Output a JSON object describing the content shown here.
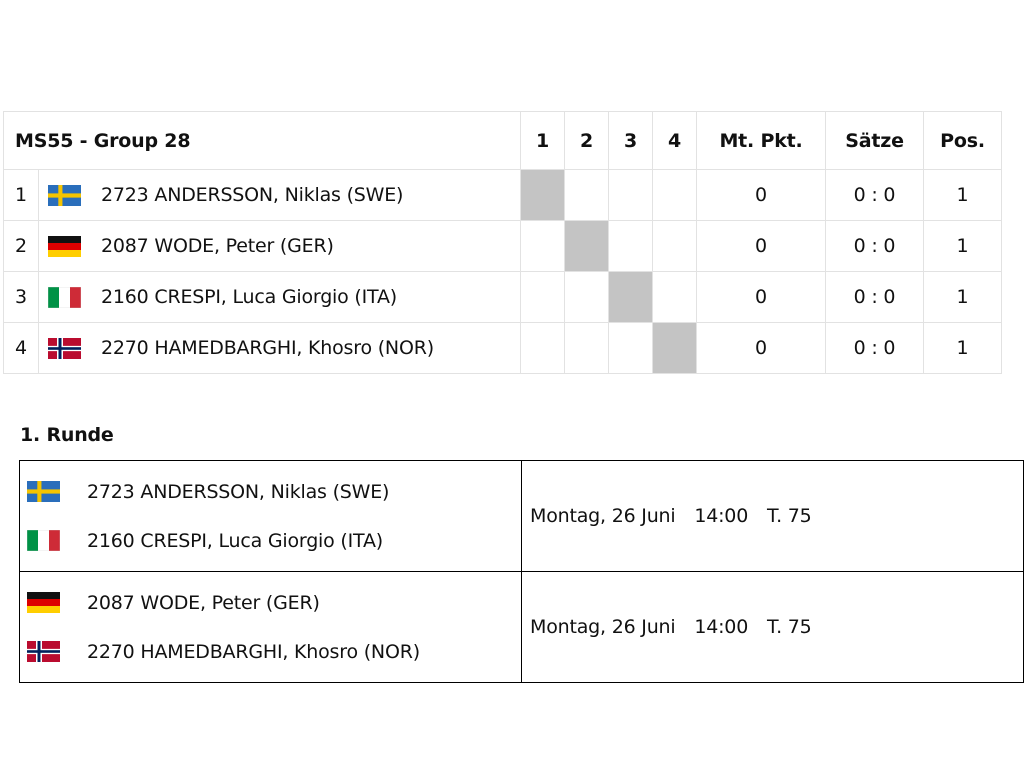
{
  "group": {
    "title": "MS55 - Group 28",
    "columns": [
      "1",
      "2",
      "3",
      "4",
      "Mt. Pkt.",
      "Sätze",
      "Pos."
    ],
    "rows": [
      {
        "num": "1",
        "flag": "sweden-flag-icon",
        "player": "2723 ANDERSSON, Niklas (SWE)",
        "points": "0",
        "sets": "0 : 0",
        "pos": "1"
      },
      {
        "num": "2",
        "flag": "germany-flag-icon",
        "player": "2087 WODE, Peter (GER)",
        "points": "0",
        "sets": "0 : 0",
        "pos": "1"
      },
      {
        "num": "3",
        "flag": "italy-flag-icon",
        "player": "2160 CRESPI, Luca Giorgio (ITA)",
        "points": "0",
        "sets": "0 : 0",
        "pos": "1"
      },
      {
        "num": "4",
        "flag": "norway-flag-icon",
        "player": "2270 HAMEDBARGHI, Khosro (NOR)",
        "points": "0",
        "sets": "0 : 0",
        "pos": "1"
      }
    ]
  },
  "round": {
    "title": "1. Runde",
    "matches": [
      {
        "player1": {
          "flag": "sweden-flag-icon",
          "name": "2723 ANDERSSON, Niklas (SWE)"
        },
        "player2": {
          "flag": "italy-flag-icon",
          "name": "2160 CRESPI, Luca Giorgio (ITA)"
        },
        "date": "Montag, 26 Juni",
        "time": "14:00",
        "table": "T. 75"
      },
      {
        "player1": {
          "flag": "germany-flag-icon",
          "name": "2087 WODE, Peter (GER)"
        },
        "player2": {
          "flag": "norway-flag-icon",
          "name": "2270 HAMEDBARGHI, Khosro (NOR)"
        },
        "date": "Montag, 26 Juni",
        "time": "14:00",
        "table": "T. 75"
      }
    ]
  },
  "colors": {
    "self_cell": "#c4c4c4",
    "grid_border": "#e2e2e2",
    "round_border": "#000000"
  }
}
